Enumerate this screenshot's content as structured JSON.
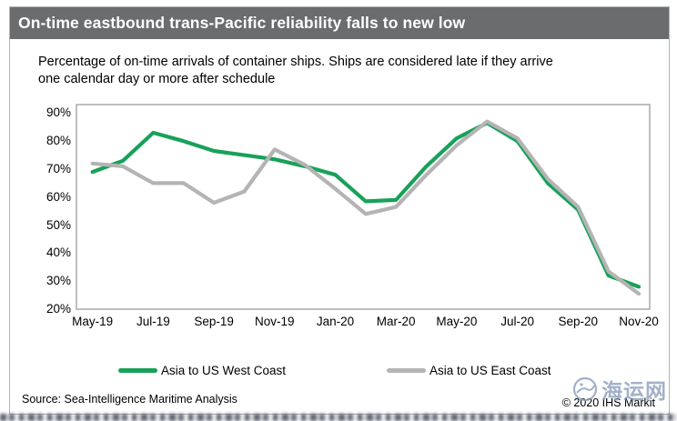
{
  "title": "On-time eastbound trans-Pacific reliability falls to new low",
  "subtitle_line1": "Percentage of on-time arrivals of container ships. Ships are considered late if they arrive",
  "subtitle_line2": "one calendar day or more after schedule",
  "footer": {
    "source": "Source: Sea-Intelligence Maritime Analysis",
    "copyright": "© 2020 IHS Markit"
  },
  "watermark": {
    "text": "海运网"
  },
  "colors": {
    "titlebar_gray": "#6a6c6e",
    "axis_gray": "#a8a8a8",
    "west_green": "#18a159",
    "east_gray": "#b4b4b4"
  },
  "chart_data": {
    "type": "line",
    "x": [
      "May-19",
      "Jun-19",
      "Jul-19",
      "Aug-19",
      "Sep-19",
      "Oct-19",
      "Nov-19",
      "Dec-19",
      "Jan-20",
      "Feb-20",
      "Mar-20",
      "Apr-20",
      "May-20",
      "Jun-20",
      "Jul-20",
      "Aug-20",
      "Sep-20",
      "Oct-20",
      "Nov-20"
    ],
    "x_tick_labels": [
      "May-19",
      "Jul-19",
      "Sep-19",
      "Nov-19",
      "Jan-20",
      "Mar-20",
      "May-20",
      "Jul-20",
      "Sep-20",
      "Nov-20"
    ],
    "series": [
      {
        "name": "Asia to US West Coast",
        "color": "#18a159",
        "values": [
          69,
          73,
          83,
          80,
          76.5,
          75,
          73.5,
          71,
          68,
          58.5,
          59,
          71,
          81,
          86.5,
          80,
          65,
          55.5,
          32,
          28
        ]
      },
      {
        "name": "Asia to US East Coast",
        "color": "#b4b4b4",
        "values": [
          72,
          71,
          65,
          65,
          58,
          62,
          77,
          71.5,
          63,
          54,
          56.5,
          68,
          78.5,
          87,
          81,
          66.5,
          56.5,
          33.5,
          25.5
        ]
      }
    ],
    "ylim": [
      20,
      90
    ],
    "yticks": [
      20,
      30,
      40,
      50,
      60,
      70,
      80,
      90
    ],
    "ytick_suffix": "%",
    "grid": false,
    "legend_position": "bottom"
  }
}
